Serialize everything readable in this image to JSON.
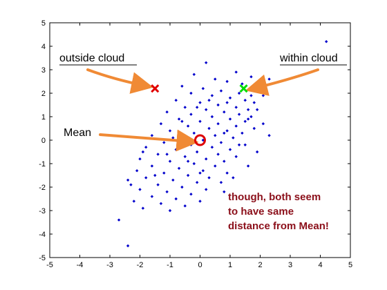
{
  "chart_data": {
    "type": "scatter",
    "title": "",
    "xlabel": "",
    "ylabel": "",
    "xlim": [
      -5,
      5
    ],
    "ylim": [
      -5,
      5
    ],
    "xticks": [
      "-5",
      "-4",
      "-3",
      "-2",
      "-1",
      "0",
      "1",
      "2",
      "3",
      "4",
      "5"
    ],
    "yticks": [
      "-5",
      "-4",
      "-3",
      "-2",
      "-1",
      "0",
      "1",
      "2",
      "3",
      "4",
      "5"
    ],
    "grid": false,
    "series": [
      {
        "marker": "diamond",
        "color": "#0000cc",
        "points": [
          [
            4.2,
            4.2
          ],
          [
            0.2,
            3.3
          ],
          [
            1.2,
            2.9
          ],
          [
            1.7,
            2.7
          ],
          [
            2.3,
            2.6
          ],
          [
            -0.2,
            2.8
          ],
          [
            0.5,
            2.6
          ],
          [
            0.9,
            2.5
          ],
          [
            1.4,
            2.4
          ],
          [
            -0.6,
            2.3
          ],
          [
            0.1,
            2.2
          ],
          [
            0.7,
            2.1
          ],
          [
            1.3,
            2.0
          ],
          [
            1.7,
            1.9
          ],
          [
            -0.3,
            2.0
          ],
          [
            0.4,
            1.9
          ],
          [
            1.0,
            1.8
          ],
          [
            1.5,
            1.7
          ],
          [
            1.8,
            1.6
          ],
          [
            -0.8,
            1.7
          ],
          [
            0.0,
            1.6
          ],
          [
            0.6,
            1.5
          ],
          [
            1.2,
            1.4
          ],
          [
            1.6,
            1.3
          ],
          [
            -0.5,
            1.4
          ],
          [
            0.2,
            1.3
          ],
          [
            0.8,
            1.2
          ],
          [
            1.3,
            1.1
          ],
          [
            1.7,
            1.0
          ],
          [
            -1.1,
            1.2
          ],
          [
            -0.3,
            1.1
          ],
          [
            0.4,
            1.0
          ],
          [
            1.0,
            0.9
          ],
          [
            1.5,
            0.8
          ],
          [
            2.1,
            0.7
          ],
          [
            -0.7,
            0.9
          ],
          [
            0.0,
            0.8
          ],
          [
            0.6,
            0.7
          ],
          [
            1.2,
            0.6
          ],
          [
            1.8,
            0.5
          ],
          [
            -1.3,
            0.7
          ],
          [
            -0.4,
            0.6
          ],
          [
            0.3,
            0.5
          ],
          [
            0.9,
            0.4
          ],
          [
            1.4,
            0.3
          ],
          [
            2.3,
            0.2
          ],
          [
            -1.0,
            0.4
          ],
          [
            -0.2,
            0.3
          ],
          [
            0.5,
            0.2
          ],
          [
            1.1,
            0.1
          ],
          [
            -1.6,
            0.2
          ],
          [
            -0.6,
            0.1
          ],
          [
            0.1,
            0.0
          ],
          [
            0.7,
            -0.1
          ],
          [
            1.3,
            -0.2
          ],
          [
            -1.2,
            -0.1
          ],
          [
            -0.3,
            -0.2
          ],
          [
            0.4,
            -0.3
          ],
          [
            1.0,
            -0.4
          ],
          [
            1.9,
            -0.5
          ],
          [
            -1.8,
            -0.3
          ],
          [
            -0.8,
            -0.4
          ],
          [
            -0.1,
            -0.5
          ],
          [
            0.6,
            -0.6
          ],
          [
            1.2,
            -0.7
          ],
          [
            -1.4,
            -0.6
          ],
          [
            -0.5,
            -0.7
          ],
          [
            0.2,
            -0.8
          ],
          [
            0.8,
            -0.9
          ],
          [
            -2.0,
            -0.8
          ],
          [
            -1.0,
            -0.9
          ],
          [
            -0.2,
            -1.0
          ],
          [
            0.5,
            -1.1
          ],
          [
            -1.6,
            -1.1
          ],
          [
            -0.7,
            -1.2
          ],
          [
            0.1,
            -1.3
          ],
          [
            0.9,
            -1.4
          ],
          [
            -2.1,
            -1.3
          ],
          [
            -1.2,
            -1.4
          ],
          [
            -0.4,
            -1.5
          ],
          [
            0.3,
            -1.6
          ],
          [
            -1.8,
            -1.6
          ],
          [
            -0.9,
            -1.7
          ],
          [
            -0.1,
            -1.8
          ],
          [
            -2.4,
            -1.7
          ],
          [
            -1.4,
            -1.9
          ],
          [
            -0.6,
            -2.0
          ],
          [
            0.2,
            -2.1
          ],
          [
            -2.0,
            -2.1
          ],
          [
            -1.1,
            -2.2
          ],
          [
            -0.3,
            -2.3
          ],
          [
            -1.6,
            -2.4
          ],
          [
            -0.8,
            -2.5
          ],
          [
            0.0,
            -2.6
          ],
          [
            -2.2,
            -2.6
          ],
          [
            -1.3,
            -2.7
          ],
          [
            -0.5,
            -2.8
          ],
          [
            -1.9,
            -2.9
          ],
          [
            -1.0,
            -3.0
          ],
          [
            -2.7,
            -3.4
          ],
          [
            -2.4,
            -4.5
          ],
          [
            0.8,
            -2.2
          ],
          [
            1.1,
            -1.6
          ],
          [
            1.6,
            -1.1
          ],
          [
            0.7,
            -1.8
          ],
          [
            -1.5,
            -1.5
          ],
          [
            -2.3,
            -1.9
          ],
          [
            -1.9,
            -0.5
          ],
          [
            1.9,
            1.3
          ],
          [
            2.1,
            1.9
          ],
          [
            1.5,
            -0.2
          ],
          [
            -0.1,
            1.4
          ],
          [
            0.3,
            1.7
          ],
          [
            -0.9,
            0.1
          ],
          [
            -0.4,
            -0.9
          ],
          [
            0.9,
            1.6
          ],
          [
            1.8,
            2.1
          ],
          [
            0.0,
            -1.4
          ],
          [
            -1.1,
            -0.6
          ],
          [
            -0.6,
            0.8
          ],
          [
            0.8,
            0.3
          ],
          [
            1.6,
            0.9
          ]
        ]
      }
    ],
    "highlights": [
      {
        "label": "outside cloud",
        "x": -1.5,
        "y": 2.2,
        "marker": "x",
        "color": "#e00000"
      },
      {
        "label": "within cloud",
        "x": 1.45,
        "y": 2.2,
        "marker": "x",
        "color": "#00dd00"
      },
      {
        "label": "Mean",
        "x": 0.0,
        "y": 0.0,
        "marker": "circle",
        "color": "#dd0000"
      }
    ],
    "annotations": {
      "outside": "outside cloud",
      "within": "within cloud",
      "mean": "Mean",
      "note_lines": [
        "though, both seem",
        "to have same",
        "distance from Mean!"
      ]
    },
    "colors": {
      "arrow": "#f08a35",
      "note": "#8b0f1a",
      "points": "#0000cc"
    }
  }
}
